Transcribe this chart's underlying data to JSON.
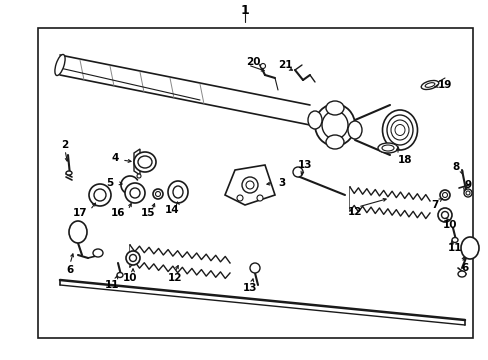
{
  "bg_color": "#ffffff",
  "border_color": "#000000",
  "line_color": "#1a1a1a",
  "text_color": "#000000",
  "fig_width": 4.89,
  "fig_height": 3.6,
  "dpi": 100
}
